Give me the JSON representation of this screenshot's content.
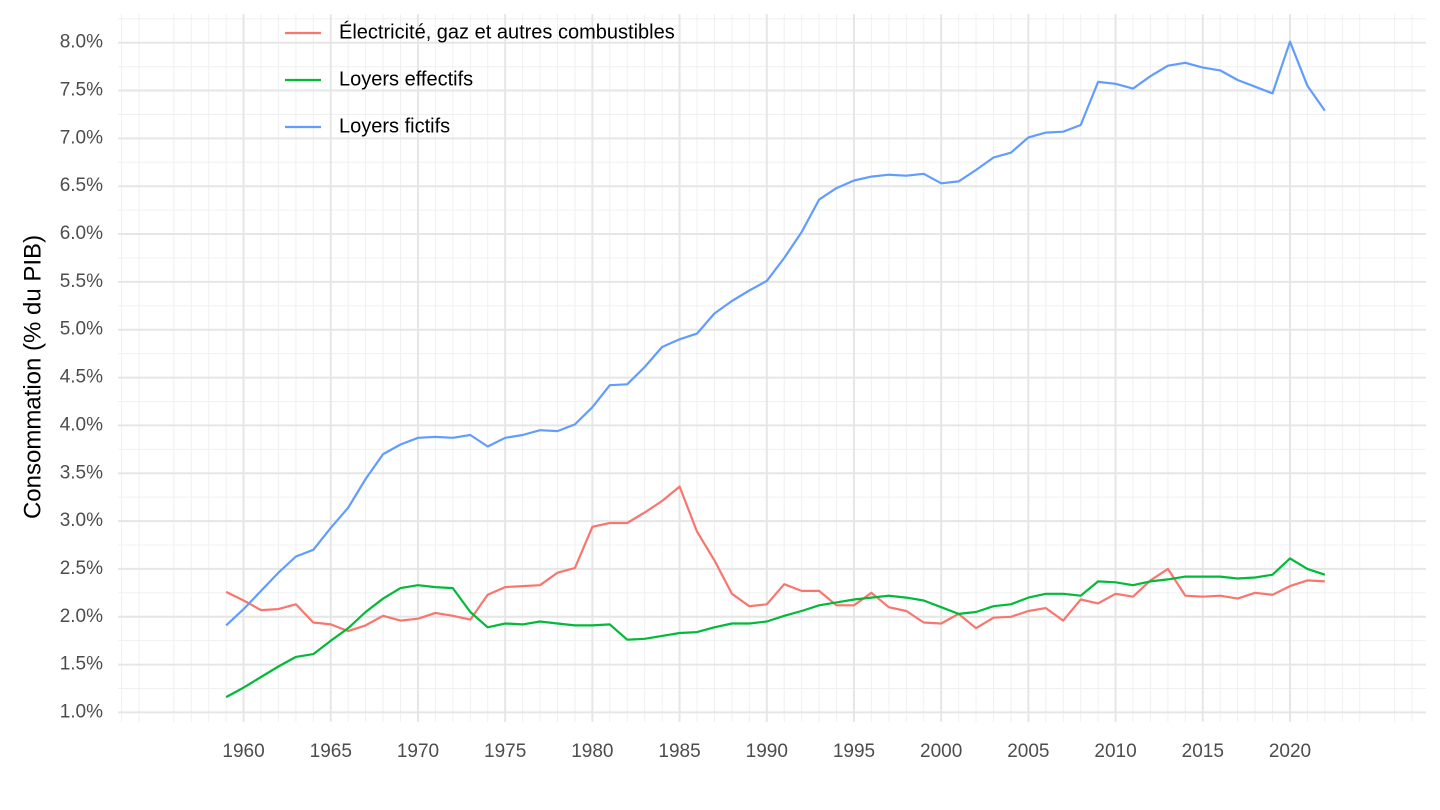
{
  "chart_data": {
    "type": "line",
    "title": "",
    "xlabel": "",
    "ylabel": "Consommation (% du PIB)",
    "xlim": [
      1952.8,
      2027.8
    ],
    "ylim": [
      0.9,
      8.3
    ],
    "grid": true,
    "legend_position": "top-left",
    "x_ticks": [
      "1960",
      "1965",
      "1970",
      "1975",
      "1980",
      "1985",
      "1990",
      "1995",
      "2000",
      "2005",
      "2010",
      "2015",
      "2020"
    ],
    "y_ticks": [
      "1.0%",
      "1.5%",
      "2.0%",
      "2.5%",
      "3.0%",
      "3.5%",
      "4.0%",
      "4.5%",
      "5.0%",
      "5.5%",
      "6.0%",
      "6.5%",
      "7.0%",
      "7.5%",
      "8.0%"
    ],
    "x": [
      1959,
      1960,
      1961,
      1962,
      1963,
      1964,
      1965,
      1966,
      1967,
      1968,
      1969,
      1970,
      1971,
      1972,
      1973,
      1974,
      1975,
      1976,
      1977,
      1978,
      1979,
      1980,
      1981,
      1982,
      1983,
      1984,
      1985,
      1986,
      1987,
      1988,
      1989,
      1990,
      1991,
      1992,
      1993,
      1994,
      1995,
      1996,
      1997,
      1998,
      1999,
      2000,
      2001,
      2002,
      2003,
      2004,
      2005,
      2006,
      2007,
      2008,
      2009,
      2010,
      2011,
      2012,
      2013,
      2014,
      2015,
      2016,
      2017,
      2018,
      2019,
      2020,
      2021,
      2022
    ],
    "series": [
      {
        "name": "Électricité, gaz et autres combustibles",
        "color": "#f8766d",
        "values": [
          2.26,
          2.17,
          2.07,
          2.08,
          2.13,
          1.94,
          1.92,
          1.85,
          1.91,
          2.01,
          1.96,
          1.98,
          2.04,
          2.01,
          1.97,
          2.23,
          2.31,
          2.32,
          2.33,
          2.46,
          2.51,
          2.94,
          2.98,
          2.98,
          3.09,
          3.21,
          3.36,
          2.89,
          2.59,
          2.24,
          2.11,
          2.13,
          2.34,
          2.27,
          2.27,
          2.12,
          2.12,
          2.25,
          2.1,
          2.06,
          1.94,
          1.93,
          2.03,
          1.88,
          1.99,
          2.0,
          2.06,
          2.09,
          1.96,
          2.18,
          2.14,
          2.24,
          2.21,
          2.38,
          2.5,
          2.22,
          2.21,
          2.22,
          2.19,
          2.25,
          2.23,
          2.32,
          2.38,
          2.37
        ]
      },
      {
        "name": "Loyers effectifs",
        "color": "#00ba38",
        "values": [
          1.16,
          1.26,
          1.37,
          1.48,
          1.58,
          1.61,
          1.75,
          1.88,
          2.05,
          2.19,
          2.3,
          2.33,
          2.31,
          2.3,
          2.05,
          1.89,
          1.93,
          1.92,
          1.95,
          1.93,
          1.91,
          1.91,
          1.92,
          1.76,
          1.77,
          1.8,
          1.83,
          1.84,
          1.89,
          1.93,
          1.93,
          1.95,
          2.01,
          2.06,
          2.12,
          2.15,
          2.18,
          2.2,
          2.22,
          2.2,
          2.17,
          2.1,
          2.03,
          2.05,
          2.11,
          2.13,
          2.2,
          2.24,
          2.24,
          2.22,
          2.37,
          2.36,
          2.33,
          2.37,
          2.39,
          2.42,
          2.42,
          2.42,
          2.4,
          2.41,
          2.44,
          2.61,
          2.5,
          2.44
        ]
      },
      {
        "name": "Loyers fictifs",
        "color": "#619cff",
        "values": [
          1.91,
          2.08,
          2.27,
          2.46,
          2.63,
          2.7,
          2.93,
          3.14,
          3.44,
          3.7,
          3.8,
          3.87,
          3.88,
          3.87,
          3.9,
          3.78,
          3.87,
          3.9,
          3.95,
          3.94,
          4.01,
          4.19,
          4.42,
          4.43,
          4.61,
          4.82,
          4.9,
          4.96,
          5.17,
          5.3,
          5.41,
          5.51,
          5.75,
          6.02,
          6.36,
          6.48,
          6.56,
          6.6,
          6.62,
          6.61,
          6.63,
          6.53,
          6.55,
          6.67,
          6.8,
          6.85,
          7.01,
          7.06,
          7.07,
          7.14,
          7.59,
          7.57,
          7.52,
          7.65,
          7.76,
          7.79,
          7.74,
          7.71,
          7.61,
          7.54,
          7.47,
          8.01,
          7.55,
          7.29
        ]
      }
    ]
  }
}
